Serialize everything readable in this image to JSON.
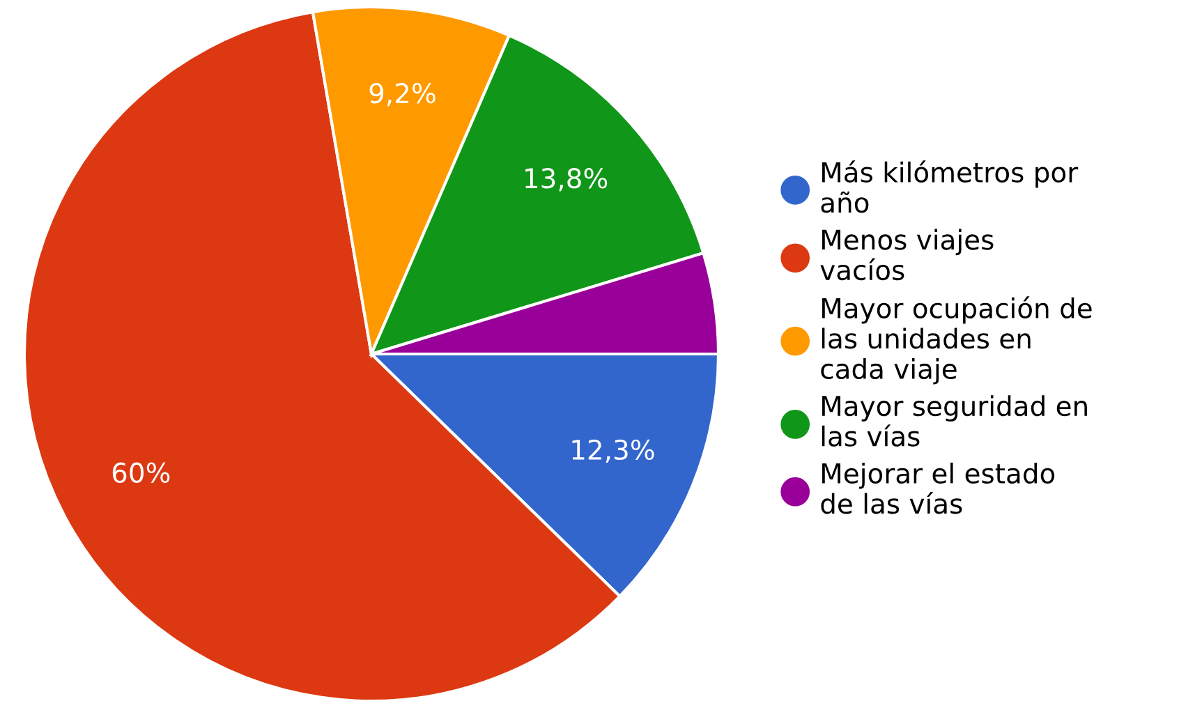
{
  "chart_data": {
    "type": "pie",
    "categories": [
      "Más kilómetros por año",
      "Menos viajes vacíos",
      "Mayor ocupación de las unidades en cada viaje",
      "Mayor seguridad en las vías",
      "Mejorar el estado de las vías"
    ],
    "values": [
      12.3,
      60,
      9.2,
      13.8,
      4.7
    ],
    "colors": [
      "#3366cc",
      "#dc3912",
      "#ff9900",
      "#109618",
      "#990099"
    ],
    "value_labels": [
      "12,3%",
      "60%",
      "9,2%",
      "13,8%",
      null
    ],
    "legend": "right"
  }
}
